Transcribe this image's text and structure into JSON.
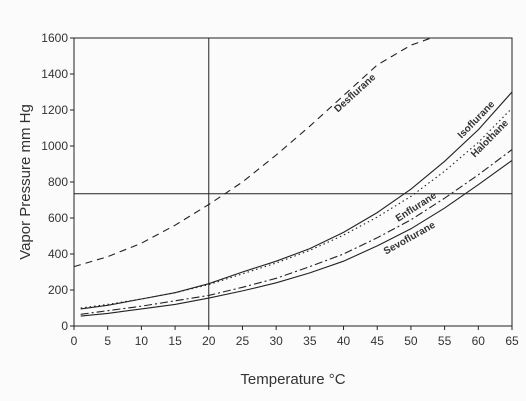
{
  "chart_data": {
    "type": "line",
    "title": "",
    "xlabel": "Temperature  °C",
    "ylabel": "Vapor Pressure  mm Hg",
    "xlim": [
      0,
      65
    ],
    "ylim": [
      0,
      1600
    ],
    "xticks": [
      0,
      5,
      10,
      15,
      20,
      25,
      30,
      35,
      40,
      45,
      50,
      55,
      60,
      65
    ],
    "yticks": [
      0,
      200,
      400,
      600,
      800,
      1000,
      1200,
      1400,
      1600
    ],
    "reference_lines": {
      "vertical_x": 20,
      "horizontal_y": 735
    },
    "series": [
      {
        "name": "Desflurane",
        "style": "dashed",
        "x": [
          0,
          5,
          10,
          15,
          20,
          25,
          30,
          35,
          40,
          45,
          50,
          53
        ],
        "y": [
          330,
          385,
          460,
          560,
          675,
          800,
          950,
          1110,
          1280,
          1450,
          1560,
          1600
        ]
      },
      {
        "name": "Isoflurane",
        "style": "solid",
        "x": [
          1,
          5,
          10,
          15,
          20,
          25,
          30,
          35,
          40,
          45,
          50,
          55,
          60,
          65
        ],
        "y": [
          95,
          115,
          150,
          185,
          235,
          300,
          360,
          430,
          520,
          630,
          760,
          915,
          1090,
          1300
        ]
      },
      {
        "name": "Halothane",
        "style": "dotted",
        "x": [
          1,
          5,
          10,
          15,
          20,
          25,
          30,
          35,
          40,
          45,
          50,
          55,
          60,
          65
        ],
        "y": [
          100,
          120,
          150,
          185,
          230,
          290,
          350,
          420,
          505,
          605,
          720,
          860,
          1020,
          1210
        ]
      },
      {
        "name": "Enflurane",
        "style": "dashdot",
        "x": [
          1,
          5,
          10,
          15,
          20,
          25,
          30,
          35,
          40,
          45,
          50,
          55,
          60,
          65
        ],
        "y": [
          65,
          85,
          110,
          140,
          170,
          215,
          265,
          330,
          400,
          490,
          590,
          710,
          840,
          980
        ]
      },
      {
        "name": "Sevoflurane",
        "style": "solid",
        "x": [
          1,
          5,
          10,
          15,
          20,
          25,
          30,
          35,
          40,
          45,
          50,
          55,
          60,
          65
        ],
        "y": [
          55,
          70,
          95,
          120,
          155,
          195,
          240,
          295,
          360,
          445,
          540,
          655,
          785,
          920
        ]
      }
    ]
  }
}
